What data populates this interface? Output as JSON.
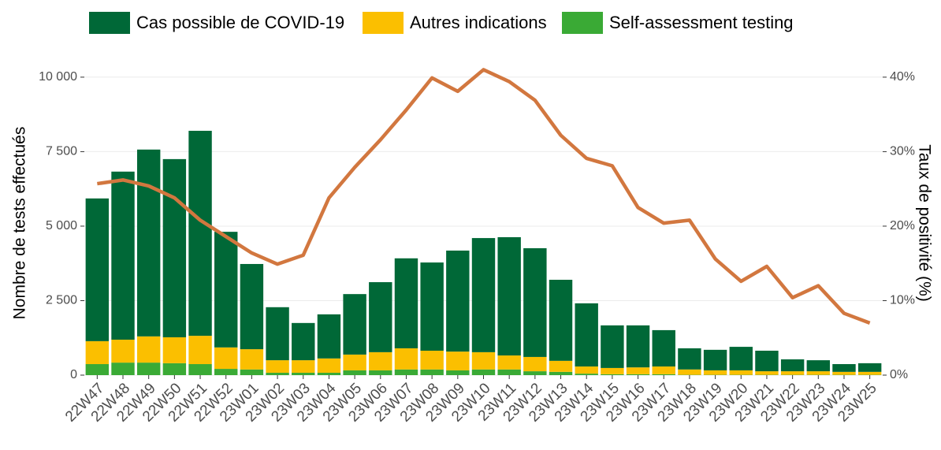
{
  "chart_data": {
    "type": "bar",
    "stacked": true,
    "categories": [
      "22W47",
      "22W48",
      "22W49",
      "22W50",
      "22W51",
      "22W52",
      "23W01",
      "23W02",
      "23W03",
      "23W04",
      "23W05",
      "23W06",
      "23W07",
      "23W08",
      "23W09",
      "23W10",
      "23W11",
      "23W12",
      "23W13",
      "23W14",
      "23W15",
      "23W16",
      "23W17",
      "23W18",
      "23W19",
      "23W20",
      "23W21",
      "23W22",
      "23W23",
      "23W24",
      "23W25"
    ],
    "series": [
      {
        "name": "Self-assessment testing",
        "color": "#3aaa35",
        "values": [
          370,
          420,
          420,
          400,
          370,
          210,
          190,
          80,
          80,
          80,
          160,
          160,
          190,
          190,
          160,
          190,
          190,
          130,
          110,
          50,
          30,
          30,
          30,
          10,
          10,
          10,
          10,
          10,
          10,
          10,
          10
        ]
      },
      {
        "name": "Autres indications",
        "color": "#fbbf00",
        "values": [
          770,
          770,
          880,
          870,
          950,
          720,
          680,
          420,
          420,
          480,
          530,
          610,
          710,
          630,
          630,
          580,
          470,
          480,
          370,
          240,
          210,
          230,
          260,
          180,
          150,
          150,
          120,
          120,
          120,
          100,
          100
        ]
      },
      {
        "name": "Cas possible de COVID-19",
        "color": "#006837",
        "values": [
          4790,
          5640,
          6270,
          5980,
          6880,
          3880,
          2860,
          1780,
          1250,
          1480,
          2030,
          2350,
          3020,
          2960,
          3390,
          3830,
          3970,
          3650,
          2720,
          2120,
          1430,
          1410,
          1220,
          710,
          690,
          790,
          690,
          400,
          370,
          260,
          290
        ]
      },
      {
        "type": "line",
        "axis": "y2",
        "color": "#d2773f",
        "values": [
          25.7,
          26.2,
          25.4,
          23.8,
          20.8,
          18.6,
          16.4,
          14.9,
          16.1,
          23.8,
          27.9,
          31.6,
          35.6,
          39.9,
          38.1,
          41.0,
          39.4,
          36.9,
          32.2,
          29.1,
          28.1,
          22.5,
          20.4,
          20.8,
          15.6,
          12.6,
          14.6,
          10.4,
          12.0,
          8.3,
          7.0
        ]
      }
    ],
    "legend_order": [
      2,
      1,
      0
    ],
    "ylabel": "Nombre de tests effectués",
    "y2label": "Taux de positivité (%)",
    "ylim": [
      0,
      10500
    ],
    "yticks": [
      0,
      {
        "value": 2500,
        "label": "2 500"
      },
      {
        "value": 5000,
        "label": "5 000"
      },
      {
        "value": 7500,
        "label": "7 500"
      },
      {
        "value": 10000,
        "label": "10 000"
      }
    ],
    "y2lim": [
      0,
      42
    ],
    "y2ticks": [
      {
        "value": 0,
        "label": "0%"
      },
      {
        "value": 10,
        "label": "10%"
      },
      {
        "value": 20,
        "label": "20%"
      },
      {
        "value": 30,
        "label": "30%"
      },
      {
        "value": 40,
        "label": "40%"
      }
    ],
    "grid": true
  }
}
